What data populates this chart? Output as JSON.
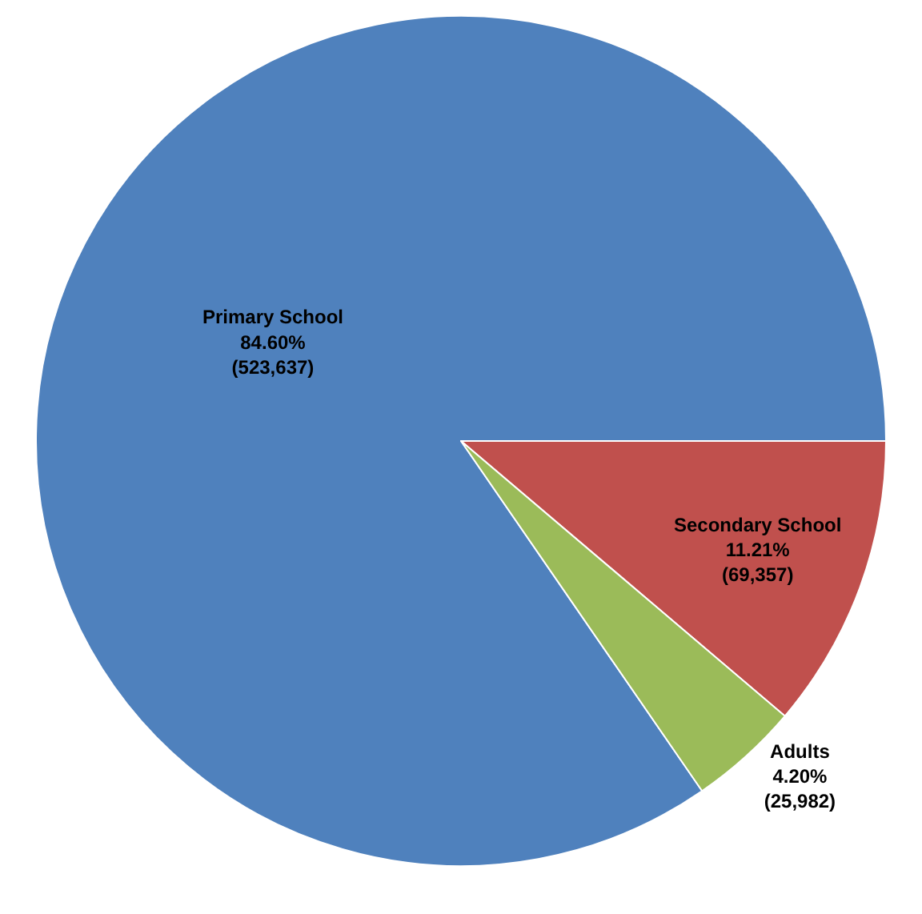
{
  "chart_data": {
    "type": "pie",
    "categories": [
      "Primary School",
      "Secondary School",
      "Adults"
    ],
    "values": [
      523637,
      69357,
      25982
    ],
    "colors": [
      "#4f81bd",
      "#c0504d",
      "#9bbb59"
    ],
    "value_labels": [
      "84.60%\n(523,637)",
      "11.21%\n(69,357)",
      "4.20%\n(25,982)"
    ],
    "legend": false
  }
}
